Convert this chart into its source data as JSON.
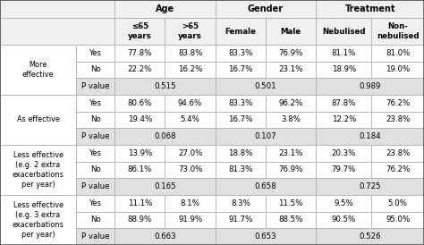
{
  "col_groups": [
    "Age",
    "Gender",
    "Treatment"
  ],
  "col_headers": [
    "≤65\nyears",
    ">65\nyears",
    "Female",
    "Male",
    "Nebulised",
    "Non-\nnebulised"
  ],
  "row_groups": [
    "More\neffective",
    "As effective",
    "Less effective\n(e.g. 2 extra\nexacerbations\nper year)",
    "Less effective\n(e.g. 3 extra\nexacerbations\nper year)"
  ],
  "row_labels": [
    "Yes",
    "No",
    "P value"
  ],
  "data": [
    [
      "77.8%",
      "83.8%",
      "83.3%",
      "76.9%",
      "81.1%",
      "81.0%"
    ],
    [
      "22.2%",
      "16.2%",
      "16.7%",
      "23.1%",
      "18.9%",
      "19.0%"
    ],
    [
      "0.515",
      "",
      "0.501",
      "",
      "0.989",
      ""
    ],
    [
      "80.6%",
      "94.6%",
      "83.3%",
      "96.2%",
      "87.8%",
      "76.2%"
    ],
    [
      "19.4%",
      "5.4%",
      "16.7%",
      "3.8%",
      "12.2%",
      "23.8%"
    ],
    [
      "0.068",
      "",
      "0.107",
      "",
      "0.184",
      ""
    ],
    [
      "13.9%",
      "27.0%",
      "18.8%",
      "23.1%",
      "20.3%",
      "23.8%"
    ],
    [
      "86.1%",
      "73.0%",
      "81.3%",
      "76.9%",
      "79.7%",
      "76.2%"
    ],
    [
      "0.165",
      "",
      "0.658",
      "",
      "0.725",
      ""
    ],
    [
      "11.1%",
      "8.1%",
      "8.3%",
      "11.5%",
      "9.5%",
      "5.0%"
    ],
    [
      "88.9%",
      "91.9%",
      "91.7%",
      "88.5%",
      "90.5%",
      "95.0%"
    ],
    [
      "0.663",
      "",
      "0.653",
      "",
      "0.526",
      ""
    ]
  ],
  "bg_normal": "#ffffff",
  "bg_pvalue": "#e0e0e0",
  "bg_header": "#f0f0f0",
  "border_color": "#aaaaaa",
  "font_size": 6.2,
  "header_font_size": 7.0
}
